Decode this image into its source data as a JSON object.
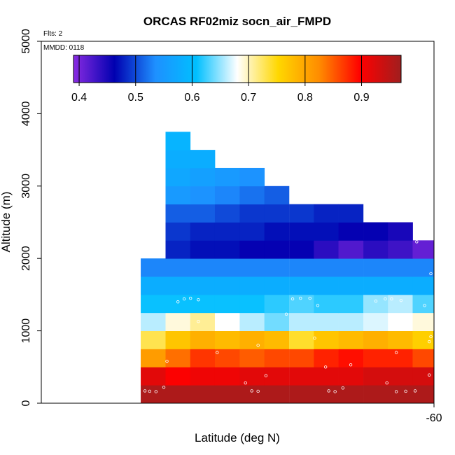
{
  "chart_data": {
    "type": "heatmap",
    "title": "ORCAS RF02miz socn_air_FMPD",
    "xlabel": "Latitude (deg N)",
    "ylabel": "Altitude (m)",
    "notes": {
      "flights": "Flts: 2",
      "date": "MMDD: 0118"
    },
    "xlim": [
      -60.25,
      -60
    ],
    "ylim": [
      0,
      5000
    ],
    "x_ticks": [
      -60
    ],
    "y_ticks": [
      0,
      1000,
      2000,
      3000,
      4000,
      5000
    ],
    "colorbar": {
      "range": [
        0.39,
        0.97
      ],
      "ticks": [
        0.4,
        0.5,
        0.6,
        0.7,
        0.8,
        0.9
      ],
      "tick_labels": [
        "0.4",
        "0.5",
        "0.6",
        "0.7",
        "0.8",
        "0.9"
      ],
      "colors": [
        "#8a2be2",
        "#0000b0",
        "#1e90ff",
        "#00bfff",
        "#ffffff",
        "#ffd700",
        "#ff8c00",
        "#ff0000",
        "#a01e1e"
      ]
    },
    "cell_width_deg": 0.0157,
    "cell_height_m": 250,
    "columns_start_lat": [
      -60.1867,
      -60.1709,
      -60.1552,
      -60.1395,
      -60.1237,
      -60.108,
      -60.0922,
      -60.0765,
      -60.0608,
      -60.045,
      -60.0293,
      -60.0136,
      -59.9978,
      -59.9821,
      -59.9664,
      -59.9506
    ],
    "rows": [
      {
        "alt": 0,
        "start_col": 0,
        "values": [
          0.96,
          0.96,
          0.96,
          0.96,
          0.96,
          0.96,
          0.96,
          0.96,
          0.96,
          0.96,
          0.96,
          0.96,
          0.96,
          0.96,
          0.96,
          0.96
        ]
      },
      {
        "alt": 250,
        "start_col": 0,
        "values": [
          0.92,
          0.9,
          0.91,
          0.91,
          0.92,
          0.92,
          0.92,
          0.92,
          0.92,
          0.93,
          0.93,
          0.93,
          0.94,
          0.92,
          0.92,
          0.91
        ]
      },
      {
        "alt": 500,
        "start_col": 0,
        "values": [
          0.81,
          0.84,
          0.87,
          0.86,
          0.85,
          0.86,
          0.86,
          0.88,
          0.89,
          0.88,
          0.88,
          0.86,
          0.84,
          0.83,
          0.85,
          0.9
        ]
      },
      {
        "alt": 750,
        "start_col": 0,
        "values": [
          0.73,
          0.77,
          0.79,
          0.78,
          0.79,
          0.78,
          0.74,
          0.77,
          0.78,
          0.79,
          0.78,
          0.76,
          0.77,
          0.79,
          0.78,
          0.78
        ]
      },
      {
        "alt": 1000,
        "start_col": 0,
        "values": [
          0.66,
          0.69,
          0.71,
          0.68,
          0.66,
          0.64,
          0.66,
          0.66,
          0.66,
          0.67,
          0.68,
          0.69,
          0.7,
          0.68,
          0.7,
          0.71
        ]
      },
      {
        "alt": 1250,
        "start_col": 0,
        "values": [
          0.61,
          0.61,
          0.61,
          0.61,
          0.61,
          0.62,
          0.63,
          0.62,
          0.62,
          0.65,
          0.66,
          0.63,
          0.64,
          0.65,
          0.66,
          0.67
        ]
      },
      {
        "alt": 1500,
        "start_col": 0,
        "values": [
          0.58,
          0.58,
          0.58,
          0.58,
          0.58,
          0.58,
          0.58,
          0.58,
          0.58,
          0.58,
          0.58,
          0.58,
          0.58,
          0.58,
          0.59
        ]
      },
      {
        "alt": 1750,
        "start_col": 0,
        "values": [
          0.53,
          0.53,
          0.53,
          0.53,
          0.53,
          0.53,
          0.53,
          0.53,
          0.53,
          0.53,
          0.53,
          0.53,
          0.53,
          0.53,
          0.53
        ]
      },
      {
        "alt": 2000,
        "start_col": 1,
        "values": [
          0.48,
          0.47,
          0.47,
          0.46,
          0.46,
          0.46,
          0.44,
          0.42,
          0.44,
          0.43,
          0.41,
          0.41
        ]
      },
      {
        "alt": 2250,
        "start_col": 1,
        "values": [
          0.49,
          0.48,
          0.48,
          0.48,
          0.47,
          0.47,
          0.47,
          0.46,
          0.46,
          0.45
        ]
      },
      {
        "alt": 2500,
        "start_col": 1,
        "values": [
          0.51,
          0.51,
          0.5,
          0.49,
          0.49,
          0.49,
          0.48,
          0.48
        ]
      },
      {
        "alt": 2750,
        "start_col": 1,
        "values": [
          0.55,
          0.54,
          0.53,
          0.52,
          0.51
        ]
      },
      {
        "alt": 3000,
        "start_col": 1,
        "values": [
          0.57,
          0.56,
          0.55,
          0.54
        ]
      },
      {
        "alt": 3250,
        "start_col": 1,
        "values": [
          0.58,
          0.58
        ]
      },
      {
        "alt": 3500,
        "start_col": 1,
        "values": [
          0.59
        ]
      }
    ],
    "points": [
      {
        "x": -60.184,
        "y": 170
      },
      {
        "x": -60.181,
        "y": 165
      },
      {
        "x": -60.177,
        "y": 160
      },
      {
        "x": -60.172,
        "y": 220
      },
      {
        "x": -60.12,
        "y": 280
      },
      {
        "x": -60.116,
        "y": 170
      },
      {
        "x": -60.112,
        "y": 165
      },
      {
        "x": -60.107,
        "y": 380
      },
      {
        "x": -60.067,
        "y": 170
      },
      {
        "x": -60.063,
        "y": 160
      },
      {
        "x": -60.058,
        "y": 210
      },
      {
        "x": -60.03,
        "y": 280
      },
      {
        "x": -60.024,
        "y": 160
      },
      {
        "x": -60.018,
        "y": 165
      },
      {
        "x": -60.012,
        "y": 170
      },
      {
        "x": -60.003,
        "y": 390
      },
      {
        "x": -59.992,
        "y": 240
      },
      {
        "x": -59.987,
        "y": 160
      },
      {
        "x": -59.983,
        "y": 160
      },
      {
        "x": -60.196,
        "y": 500
      },
      {
        "x": -60.17,
        "y": 580
      },
      {
        "x": -60.138,
        "y": 700
      },
      {
        "x": -60.112,
        "y": 800
      },
      {
        "x": -60.069,
        "y": 500
      },
      {
        "x": -60.053,
        "y": 530
      },
      {
        "x": -60.024,
        "y": 700
      },
      {
        "x": -60.003,
        "y": 850
      },
      {
        "x": -60.002,
        "y": 920
      },
      {
        "x": -59.997,
        "y": 500
      },
      {
        "x": -60.15,
        "y": 1130
      },
      {
        "x": -60.094,
        "y": 1230
      },
      {
        "x": -60.076,
        "y": 900
      },
      {
        "x": -60.197,
        "y": 1360
      },
      {
        "x": -60.163,
        "y": 1400
      },
      {
        "x": -60.159,
        "y": 1440
      },
      {
        "x": -60.155,
        "y": 1450
      },
      {
        "x": -60.15,
        "y": 1430
      },
      {
        "x": -60.09,
        "y": 1440
      },
      {
        "x": -60.085,
        "y": 1450
      },
      {
        "x": -60.079,
        "y": 1450
      },
      {
        "x": -60.074,
        "y": 1350
      },
      {
        "x": -60.037,
        "y": 1410
      },
      {
        "x": -60.031,
        "y": 1440
      },
      {
        "x": -60.027,
        "y": 1440
      },
      {
        "x": -60.021,
        "y": 1420
      },
      {
        "x": -60.006,
        "y": 1350
      },
      {
        "x": -59.993,
        "y": 1450
      },
      {
        "x": -59.988,
        "y": 1440
      },
      {
        "x": -59.983,
        "y": 1440
      },
      {
        "x": -60.192,
        "y": 1780
      },
      {
        "x": -60.002,
        "y": 1790
      },
      {
        "x": -60.186,
        "y": 2200
      },
      {
        "x": -60.011,
        "y": 2230
      },
      {
        "x": -60.181,
        "y": 2650
      },
      {
        "x": -60.176,
        "y": 3080
      },
      {
        "x": -60.178,
        "y": 3510
      }
    ]
  }
}
